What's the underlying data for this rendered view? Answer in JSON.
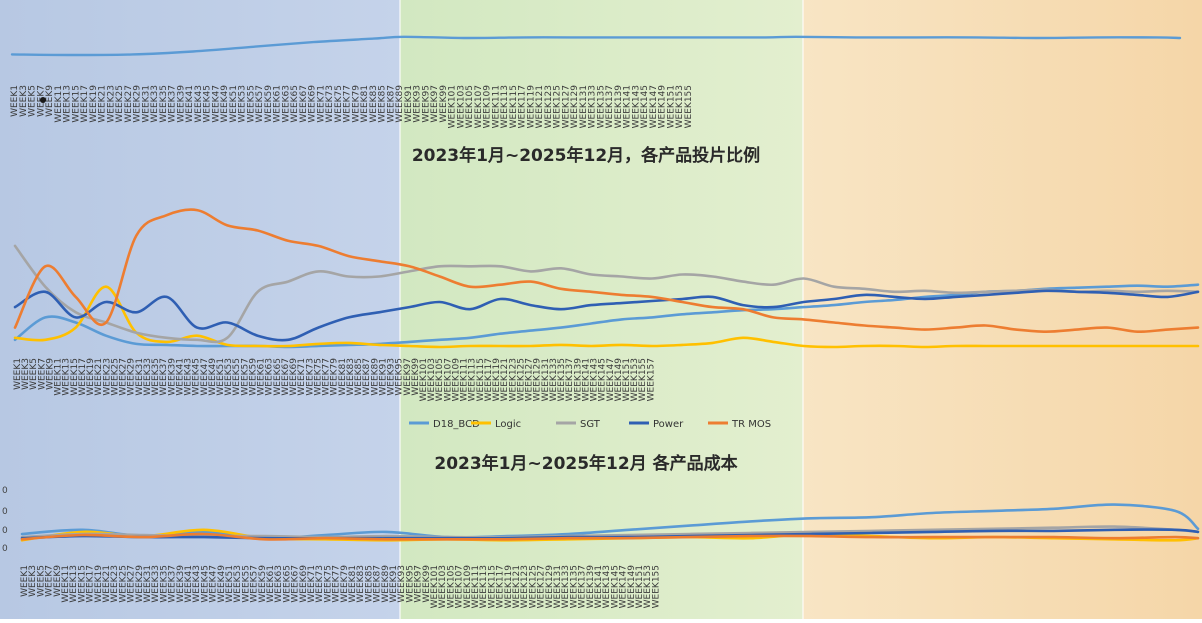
{
  "theme": {
    "phase_colors": [
      "#b9c9e4",
      "#d7eac3",
      "#f7dfb8"
    ],
    "line_colors": {
      "blue": "#5b9bd5",
      "yellow": "#ffc000",
      "gray": "#a5a5a5",
      "navy": "#2f5fb3",
      "orange": "#ed7d31"
    }
  },
  "chart_data": [
    {
      "type": "line",
      "title": "",
      "week_labels": [
        "WEEK1",
        "WEEK3",
        "WEEK5",
        "WEEK7",
        "WEEK9",
        "WEEK11",
        "WEEK13",
        "WEEK15",
        "WEEK17",
        "WEEK19",
        "WEEK21",
        "WEEK23",
        "WEEK25",
        "WEEK27",
        "WEEK29",
        "WEEK31",
        "WEEK33",
        "WEEK35",
        "WEEK37",
        "WEEK39",
        "WEEK41",
        "WEEK43",
        "WEEK45",
        "WEEK47",
        "WEEK49",
        "WEEK51",
        "WEEK53",
        "WEEK55",
        "WEEK57",
        "WEEK59",
        "WEEK61",
        "WEEK63",
        "WEEK65",
        "WEEK67",
        "WEEK69",
        "WEEK71",
        "WEEK73",
        "WEEK75",
        "WEEK77",
        "WEEK79",
        "WEEK81",
        "WEEK83",
        "WEEK85",
        "WEEK87",
        "WEEK89",
        "WEEK91",
        "WEEK93",
        "WEEK95",
        "WEEK97",
        "WEEK99",
        "WEEK101",
        "WEEK103",
        "WEEK105",
        "WEEK107",
        "WEEK109",
        "WEEK111",
        "WEEK113",
        "WEEK115",
        "WEEK117",
        "WEEK119",
        "WEEK121",
        "WEEK123",
        "WEEK125",
        "WEEK127",
        "WEEK129",
        "WEEK131",
        "WEEK133",
        "WEEK135",
        "WEEK137",
        "WEEK139",
        "WEEK141",
        "WEEK143",
        "WEEK145",
        "WEEK147",
        "WEEK149",
        "WEEK151",
        "WEEK153",
        "WEEK155"
      ],
      "x": [
        1,
        9,
        17,
        25,
        33,
        41,
        49,
        53,
        61,
        69,
        77,
        85,
        93,
        101,
        105,
        113,
        121,
        129,
        137,
        145,
        153,
        156
      ],
      "series": [
        {
          "color": "blue",
          "values": [
            35,
            34,
            35,
            40,
            48,
            56,
            62,
            65,
            63,
            64,
            64,
            64,
            64,
            64,
            65,
            64,
            64,
            64,
            63,
            64,
            64,
            63
          ]
        }
      ]
    },
    {
      "type": "line",
      "title": "2023年1月~2025年12月，各产品投片比例",
      "week_labels": [
        "WEEK1",
        "WEEK3",
        "WEEK5",
        "WEEK7",
        "WEEK9",
        "WEEK11",
        "WEEK13",
        "WEEK15",
        "WEEK17",
        "WEEK19",
        "WEEK21",
        "WEEK23",
        "WEEK25",
        "WEEK27",
        "WEEK29",
        "WEEK31",
        "WEEK33",
        "WEEK35",
        "WEEK37",
        "WEEK39",
        "WEEK41",
        "WEEK43",
        "WEEK45",
        "WEEK47",
        "WEEK49",
        "WEEK51",
        "WEEK53",
        "WEEK55",
        "WEEK57",
        "WEEK59",
        "WEEK61",
        "WEEK63",
        "WEEK65",
        "WEEK67",
        "WEEK69",
        "WEEK71",
        "WEEK73",
        "WEEK75",
        "WEEK77",
        "WEEK79",
        "WEEK81",
        "WEEK83",
        "WEEK85",
        "WEEK87",
        "WEEK89",
        "WEEK91",
        "WEEK93",
        "WEEK95",
        "WEEK97",
        "WEEK99",
        "WEEK101",
        "WEEK103",
        "WEEK105",
        "WEEK107",
        "WEEK109",
        "WEEK111",
        "WEEK113",
        "WEEK115",
        "WEEK117",
        "WEEK119",
        "WEEK121",
        "WEEK123",
        "WEEK125",
        "WEEK127",
        "WEEK129",
        "WEEK131",
        "WEEK133",
        "WEEK135",
        "WEEK137",
        "WEEK139",
        "WEEK141",
        "WEEK143",
        "WEEK145",
        "WEEK147",
        "WEEK149",
        "WEEK151",
        "WEEK153",
        "WEEK155",
        "WEEK157"
      ],
      "x": [
        1,
        5,
        9,
        13,
        17,
        21,
        25,
        29,
        33,
        37,
        41,
        45,
        49,
        53,
        57,
        61,
        65,
        69,
        73,
        77,
        81,
        85,
        89,
        93,
        97,
        101,
        105,
        109,
        113,
        117,
        121,
        125,
        129,
        133,
        137,
        141,
        145,
        149,
        153,
        157
      ],
      "legend": [
        "D18_BCD",
        "Logic",
        "SGT",
        "Power",
        "TR MOS"
      ],
      "series": [
        {
          "name": "D18_BCD",
          "color": "blue",
          "values": [
            8,
            30,
            25,
            12,
            4,
            3,
            2,
            2,
            2,
            1,
            2,
            3,
            4,
            6,
            8,
            10,
            14,
            17,
            20,
            24,
            28,
            30,
            33,
            35,
            37,
            38,
            40,
            42,
            45,
            47,
            50,
            52,
            55,
            56,
            58,
            59,
            60,
            61,
            60,
            62
          ]
        },
        {
          "name": "Logic",
          "color": "yellow",
          "values": [
            10,
            8,
            20,
            60,
            15,
            6,
            12,
            3,
            2,
            2,
            4,
            5,
            3,
            2,
            1,
            2,
            2,
            2,
            3,
            2,
            3,
            2,
            3,
            5,
            10,
            6,
            2,
            1,
            2,
            2,
            1,
            2,
            2,
            2,
            2,
            2,
            2,
            2,
            2,
            2
          ]
        },
        {
          "name": "SGT",
          "color": "gray",
          "values": [
            100,
            60,
            35,
            25,
            15,
            10,
            8,
            10,
            55,
            65,
            75,
            70,
            70,
            75,
            80,
            80,
            80,
            75,
            78,
            72,
            70,
            68,
            72,
            70,
            65,
            62,
            68,
            60,
            58,
            55,
            56,
            54,
            55,
            56,
            57,
            55,
            56,
            55,
            56,
            55
          ]
        },
        {
          "name": "Power",
          "color": "navy",
          "values": [
            40,
            55,
            30,
            45,
            35,
            50,
            20,
            25,
            12,
            8,
            20,
            30,
            35,
            40,
            45,
            38,
            48,
            42,
            38,
            42,
            44,
            46,
            48,
            50,
            42,
            40,
            45,
            48,
            52,
            50,
            48,
            50,
            52,
            54,
            56,
            55,
            54,
            52,
            50,
            55
          ]
        },
        {
          "name": "TR MOS",
          "color": "orange",
          "values": [
            20,
            80,
            50,
            25,
            110,
            130,
            135,
            120,
            115,
            105,
            100,
            90,
            85,
            80,
            70,
            60,
            62,
            65,
            58,
            55,
            52,
            50,
            45,
            40,
            38,
            30,
            28,
            25,
            22,
            20,
            18,
            20,
            22,
            18,
            16,
            18,
            20,
            16,
            18,
            20
          ]
        }
      ]
    },
    {
      "type": "line",
      "title": "2023年1月~2025年12月 各产品成本",
      "y_tick_labels": [
        "0",
        "0",
        "0",
        "0"
      ],
      "week_labels": [
        "WEEK1",
        "WEEK3",
        "WEEK5",
        "WEEK7",
        "WEEK9",
        "WEEK11",
        "WEEK13",
        "WEEK15",
        "WEEK17",
        "WEEK19",
        "WEEK21",
        "WEEK23",
        "WEEK25",
        "WEEK27",
        "WEEK29",
        "WEEK31",
        "WEEK33",
        "WEEK35",
        "WEEK37",
        "WEEK39",
        "WEEK41",
        "WEEK43",
        "WEEK45",
        "WEEK47",
        "WEEK49",
        "WEEK51",
        "WEEK53",
        "WEEK55",
        "WEEK57",
        "WEEK59",
        "WEEK61",
        "WEEK63",
        "WEEK65",
        "WEEK67",
        "WEEK69",
        "WEEK71",
        "WEEK73",
        "WEEK75",
        "WEEK77",
        "WEEK79",
        "WEEK81",
        "WEEK83",
        "WEEK85",
        "WEEK87",
        "WEEK89",
        "WEEK91",
        "WEEK93",
        "WEEK95",
        "WEEK97",
        "WEEK99",
        "WEEK101",
        "WEEK103",
        "WEEK105",
        "WEEK107",
        "WEEK109",
        "WEEK111",
        "WEEK113",
        "WEEK115",
        "WEEK117",
        "WEEK119",
        "WEEK121",
        "WEEK123",
        "WEEK125",
        "WEEK127",
        "WEEK129",
        "WEEK131",
        "WEEK133",
        "WEEK135",
        "WEEK137",
        "WEEK139",
        "WEEK141",
        "WEEK143",
        "WEEK145",
        "WEEK147",
        "WEEK149",
        "WEEK151",
        "WEEK153",
        "WEEK155"
      ],
      "x": [
        1,
        9,
        17,
        25,
        33,
        41,
        49,
        57,
        65,
        73,
        81,
        89,
        97,
        105,
        113,
        121,
        129,
        137,
        145,
        153,
        156
      ],
      "series": [
        {
          "color": "blue",
          "values": [
            20,
            24,
            18,
            22,
            16,
            19,
            22,
            17,
            18,
            20,
            24,
            28,
            32,
            35,
            36,
            40,
            42,
            44,
            48,
            42,
            25
          ]
        },
        {
          "color": "yellow",
          "values": [
            14,
            22,
            18,
            24,
            16,
            15,
            14,
            15,
            14,
            15,
            16,
            17,
            16,
            20,
            18,
            16,
            17,
            16,
            15,
            14,
            16
          ]
        },
        {
          "color": "gray",
          "values": [
            17,
            20,
            19,
            18,
            18,
            17,
            18,
            17,
            17,
            18,
            19,
            20,
            21,
            22,
            23,
            24,
            25,
            26,
            27,
            24,
            22
          ]
        },
        {
          "color": "navy",
          "values": [
            16,
            18,
            17,
            17,
            16,
            16,
            16,
            16,
            16,
            17,
            17,
            18,
            19,
            20,
            21,
            22,
            23,
            23,
            24,
            24,
            22
          ]
        },
        {
          "color": "orange",
          "values": [
            15,
            19,
            17,
            20,
            15,
            16,
            15,
            15,
            15,
            16,
            16,
            17,
            18,
            18,
            17,
            17,
            17,
            17,
            16,
            17,
            16
          ]
        }
      ]
    }
  ]
}
